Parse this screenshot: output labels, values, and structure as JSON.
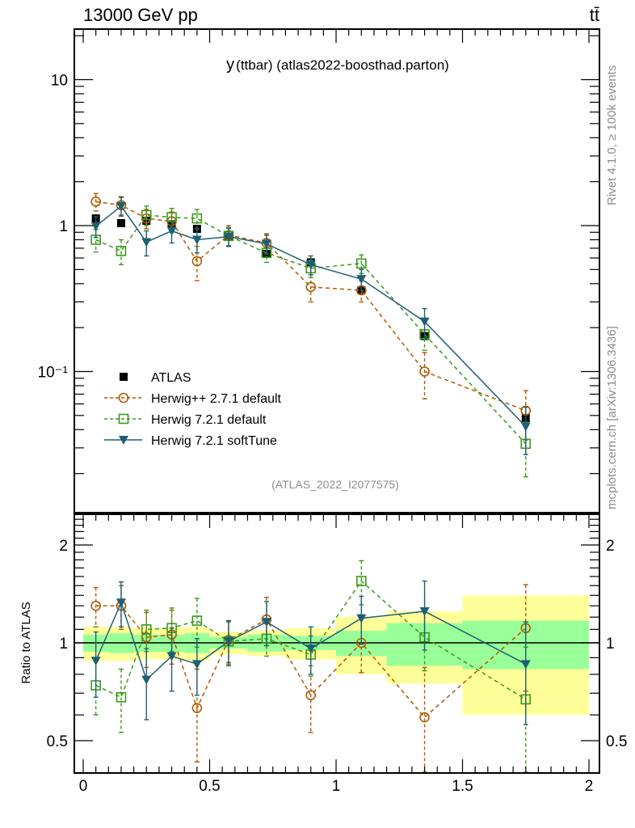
{
  "header": {
    "left": "13000 GeV pp",
    "right": "tt̄"
  },
  "side_labels": {
    "upper": "Rivet 4.1.0, ≥ 100k events",
    "lower": "mcplots.cern.ch [arXiv:1306.3436]"
  },
  "chart_data": {
    "type": "scatter",
    "title_main": "y",
    "title_rest": "(ttbar) (atlas2022-boosthad.parton)",
    "analysis_tag": "(ATLAS_2022_I2077575)",
    "xlabel": "",
    "ylabel": "",
    "ratio_ylabel": "Ratio to ATLAS",
    "xlim": [
      -0.01,
      2.03
    ],
    "ylim": [
      0.011,
      22
    ],
    "ylog": true,
    "ratio_ylim": [
      0.42,
      2.5
    ],
    "ratio_ylog": true,
    "x_ticks": [
      "0",
      "0.5",
      "1",
      "1.5",
      "2"
    ],
    "y_ticks": [
      "10",
      "1",
      "10⁻¹"
    ],
    "ratio_y_ticks": [
      "2",
      "1",
      "0.5"
    ],
    "legend_position": "lower-left",
    "bin_edges": [
      0,
      0.1,
      0.2,
      0.3,
      0.4,
      0.5,
      0.65,
      0.8,
      1.0,
      1.2,
      1.5,
      2.0
    ],
    "x": [
      0.05,
      0.15,
      0.25,
      0.35,
      0.45,
      0.575,
      0.725,
      0.9,
      1.1,
      1.35,
      1.75
    ],
    "band_inner": [
      0.06,
      0.07,
      0.06,
      0.06,
      0.07,
      0.04,
      0.06,
      0.05,
      0.09,
      0.15,
      0.17
    ],
    "band_outer": [
      0.12,
      0.12,
      0.11,
      0.11,
      0.12,
      0.08,
      0.09,
      0.11,
      0.2,
      0.25,
      0.4
    ],
    "series": [
      {
        "name": "ATLAS",
        "style": "data",
        "color": "#000000",
        "values": [
          1.12,
          1.04,
          1.08,
          1.02,
          0.95,
          0.84,
          0.64,
          0.56,
          0.36,
          0.175,
          0.048
        ],
        "ratio": [
          1,
          1,
          1,
          1,
          1,
          1,
          1,
          1,
          1,
          1,
          1
        ]
      },
      {
        "name": "Herwig++ 2.7.1 default",
        "style": "circle-dashed",
        "color": "#b35900",
        "values": [
          1.46,
          1.38,
          1.12,
          1.07,
          0.57,
          0.86,
          0.76,
          0.38,
          0.36,
          0.1,
          0.054
        ],
        "errors": [
          0.2,
          0.2,
          0.17,
          0.17,
          0.15,
          0.14,
          0.12,
          0.08,
          0.06,
          0.035,
          0.02
        ],
        "ratio": [
          1.3,
          1.3,
          1.04,
          1.06,
          0.63,
          1.02,
          1.18,
          0.69,
          1.0,
          0.59,
          1.11
        ],
        "ratio_err": [
          0.18,
          0.2,
          0.2,
          0.2,
          0.2,
          0.15,
          0.2,
          0.16,
          0.19,
          0.25,
          0.4
        ]
      },
      {
        "name": "Herwig 7.2.1 default",
        "style": "square-dashed",
        "color": "#3a9a1a",
        "values": [
          0.8,
          0.67,
          1.18,
          1.14,
          1.12,
          0.85,
          0.65,
          0.51,
          0.55,
          0.18,
          0.032
        ],
        "errors": [
          0.14,
          0.13,
          0.18,
          0.17,
          0.17,
          0.12,
          0.09,
          0.07,
          0.08,
          0.04,
          0.013
        ],
        "ratio": [
          0.74,
          0.68,
          1.1,
          1.11,
          1.17,
          1.01,
          1.03,
          0.92,
          1.55,
          1.04,
          0.67
        ],
        "ratio_err": [
          0.14,
          0.15,
          0.16,
          0.17,
          0.2,
          0.15,
          0.12,
          0.13,
          0.24,
          0.22,
          0.3
        ]
      },
      {
        "name": "Herwig 7.2.1 softTune",
        "style": "triangle-solid",
        "color": "#1e5f74",
        "values": [
          0.99,
          1.36,
          0.77,
          0.92,
          0.8,
          0.84,
          0.75,
          0.54,
          0.43,
          0.22,
          0.042
        ],
        "errors": [
          0.16,
          0.2,
          0.15,
          0.16,
          0.15,
          0.12,
          0.11,
          0.08,
          0.07,
          0.05,
          0.015
        ],
        "ratio": [
          0.88,
          1.33,
          0.77,
          0.91,
          0.86,
          1.01,
          1.16,
          0.96,
          1.19,
          1.25,
          0.86
        ],
        "ratio_err": [
          0.2,
          0.21,
          0.19,
          0.2,
          0.17,
          0.16,
          0.18,
          0.16,
          0.2,
          0.3,
          0.3
        ]
      }
    ]
  }
}
